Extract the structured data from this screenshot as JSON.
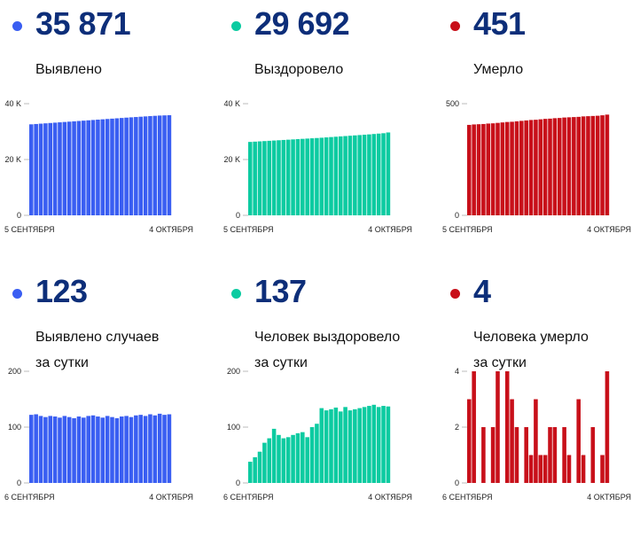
{
  "colors": {
    "blue": "#3a5ef2",
    "green": "#0ccba1",
    "red": "#c8101a",
    "number": "#0d2e79"
  },
  "panels": [
    {
      "number": "35 871",
      "label": "Выявлено",
      "color": "#3a5ef2",
      "chart_data": {
        "type": "bar",
        "ylim": [
          0,
          40000
        ],
        "yticks": [
          {
            "v": 0,
            "label": "0"
          },
          {
            "v": 20000,
            "label": "20 K"
          },
          {
            "v": 40000,
            "label": "40 K"
          }
        ],
        "x_start": "5 СЕНТЯБРЯ",
        "x_end": "4 ОКТЯБРЯ",
        "values": [
          32600,
          32720,
          32840,
          32960,
          33080,
          33200,
          33320,
          33440,
          33560,
          33680,
          33800,
          33920,
          34040,
          34160,
          34280,
          34400,
          34520,
          34640,
          34760,
          34880,
          35000,
          35110,
          35220,
          35330,
          35440,
          35550,
          35650,
          35750,
          35810,
          35871
        ]
      }
    },
    {
      "number": "29 692",
      "label": "Выздоровело",
      "color": "#0ccba1",
      "chart_data": {
        "type": "bar",
        "ylim": [
          0,
          40000
        ],
        "yticks": [
          {
            "v": 0,
            "label": "0"
          },
          {
            "v": 20000,
            "label": "20 K"
          },
          {
            "v": 40000,
            "label": "40 K"
          }
        ],
        "x_start": "5 СЕНТЯБРЯ",
        "x_end": "4 ОКТЯБРЯ",
        "values": [
          26300,
          26400,
          26500,
          26600,
          26700,
          26800,
          26900,
          27000,
          27100,
          27200,
          27300,
          27400,
          27500,
          27600,
          27700,
          27800,
          27920,
          28040,
          28160,
          28280,
          28400,
          28520,
          28640,
          28760,
          28880,
          29000,
          29140,
          29280,
          29420,
          29692
        ]
      }
    },
    {
      "number": "451",
      "label": "Умерло",
      "color": "#c8101a",
      "chart_data": {
        "type": "bar",
        "ylim": [
          0,
          500
        ],
        "yticks": [
          {
            "v": 0,
            "label": "0"
          },
          {
            "v": 500,
            "label": "500"
          }
        ],
        "x_start": "5 СЕНТЯБРЯ",
        "x_end": "4 ОКТЯБРЯ",
        "values": [
          405,
          407,
          408,
          409,
          411,
          412,
          414,
          416,
          418,
          419,
          421,
          423,
          425,
          427,
          428,
          430,
          432,
          433,
          435,
          436,
          438,
          439,
          440,
          441,
          443,
          444,
          445,
          446,
          448,
          451
        ]
      }
    },
    {
      "number": "123",
      "label": "Выявлено случаев за сутки",
      "color": "#3a5ef2",
      "chart_data": {
        "type": "bar",
        "ylim": [
          0,
          200
        ],
        "yticks": [
          {
            "v": 0,
            "label": "0"
          },
          {
            "v": 100,
            "label": "100"
          },
          {
            "v": 200,
            "label": "200"
          }
        ],
        "x_start": "6 СЕНТЯБРЯ",
        "x_end": "4 ОКТЯБРЯ",
        "values": [
          122,
          123,
          120,
          118,
          120,
          119,
          117,
          120,
          118,
          116,
          119,
          117,
          120,
          121,
          119,
          117,
          120,
          118,
          116,
          119,
          120,
          118,
          121,
          122,
          120,
          123,
          121,
          124,
          122,
          123
        ]
      }
    },
    {
      "number": "137",
      "label": "Человек выздоровело за сутки",
      "color": "#0ccba1",
      "chart_data": {
        "type": "bar",
        "ylim": [
          0,
          200
        ],
        "yticks": [
          {
            "v": 0,
            "label": "0"
          },
          {
            "v": 100,
            "label": "100"
          },
          {
            "v": 200,
            "label": "200"
          }
        ],
        "x_start": "6 СЕНТЯБРЯ",
        "x_end": "4 ОКТЯБРЯ",
        "values": [
          38,
          46,
          56,
          72,
          80,
          97,
          86,
          80,
          82,
          86,
          89,
          91,
          82,
          100,
          106,
          134,
          130,
          132,
          135,
          128,
          136,
          130,
          132,
          134,
          136,
          138,
          140,
          136,
          138,
          137
        ]
      }
    },
    {
      "number": "4",
      "label": "Человека умерло за сутки",
      "color": "#c8101a",
      "chart_data": {
        "type": "bar",
        "ylim": [
          0,
          4
        ],
        "yticks": [
          {
            "v": 0,
            "label": "0"
          },
          {
            "v": 2,
            "label": "2"
          },
          {
            "v": 4,
            "label": "4"
          }
        ],
        "x_start": "6 СЕНТЯБРЯ",
        "x_end": "4 ОКТЯБРЯ",
        "values": [
          3,
          4,
          0,
          2,
          0,
          2,
          4,
          0,
          4,
          3,
          2,
          0,
          2,
          1,
          3,
          1,
          1,
          2,
          2,
          0,
          2,
          1,
          0,
          3,
          1,
          0,
          2,
          0,
          1,
          4
        ]
      }
    }
  ]
}
